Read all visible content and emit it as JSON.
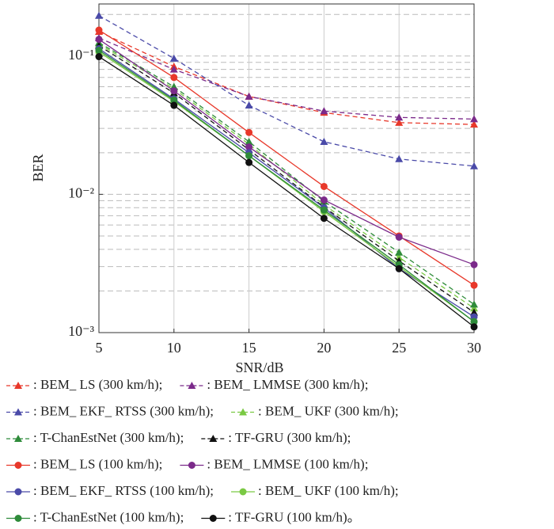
{
  "chart_data": {
    "type": "line",
    "x_label": "SNR/dB",
    "y_label": "BER",
    "x": [
      5,
      10,
      15,
      20,
      25,
      30
    ],
    "xlim": [
      5,
      30
    ],
    "xticks": [
      5,
      10,
      15,
      20,
      25,
      30
    ],
    "ylim": [
      0.001,
      0.238
    ],
    "log_y": true,
    "yticks": [
      {
        "value": 0.001,
        "label": "10⁻³"
      },
      {
        "value": 0.01,
        "label": "10⁻²"
      },
      {
        "value": 0.1,
        "label": "10⁻¹"
      }
    ],
    "yticks_minor": [
      0.002,
      0.003,
      0.004,
      0.005,
      0.006,
      0.007,
      0.008,
      0.009,
      0.02,
      0.03,
      0.04,
      0.05,
      0.06,
      0.07,
      0.08,
      0.09,
      0.2
    ],
    "grid": true,
    "legend": "bottom",
    "series": [
      {
        "name": ": BEM_ LS (300 km/h);",
        "color": "#e8382a",
        "dashed": true,
        "marker": "triangle",
        "values": [
          0.15,
          0.084,
          0.051,
          0.039,
          0.033,
          0.032
        ]
      },
      {
        "name": ": BEM_ LMMSE (300 km/h);",
        "color": "#7b2a8a",
        "dashed": true,
        "marker": "triangle",
        "values": [
          0.135,
          0.08,
          0.051,
          0.04,
          0.036,
          0.035
        ]
      },
      {
        "name": ": BEM_ EKF_ RTSS (300 km/h);",
        "color": "#4a4aa8",
        "dashed": true,
        "marker": "triangle",
        "values": [
          0.196,
          0.096,
          0.044,
          0.024,
          0.018,
          0.016
        ]
      },
      {
        "name": ": BEM_ UKF (300 km/h);",
        "color": "#7ac943",
        "dashed": true,
        "marker": "triangle",
        "values": [
          0.122,
          0.058,
          0.023,
          0.0084,
          0.0035,
          0.0015
        ]
      },
      {
        "name": ": T-ChanEstNet (300 km/h);",
        "color": "#2e8b3a",
        "dashed": true,
        "marker": "triangle",
        "values": [
          0.125,
          0.06,
          0.024,
          0.0089,
          0.0038,
          0.0016
        ]
      },
      {
        "name": ": TF-GRU (300 km/h);",
        "color": "#111111",
        "dashed": true,
        "marker": "triangle",
        "values": [
          0.119,
          0.054,
          0.021,
          0.0081,
          0.0033,
          0.0014
        ]
      },
      {
        "name": ": BEM_ LS (100 km/h);",
        "color": "#e8382a",
        "dashed": false,
        "marker": "circle",
        "values": [
          0.154,
          0.07,
          0.028,
          0.0114,
          0.005,
          0.0022
        ]
      },
      {
        "name": ": BEM_ LMMSE (100 km/h);",
        "color": "#7b2a8a",
        "dashed": false,
        "marker": "circle",
        "values": [
          0.132,
          0.056,
          0.022,
          0.0091,
          0.0049,
          0.0031
        ]
      },
      {
        "name": ": BEM_ EKF_ RTSS (100 km/h);",
        "color": "#4a4aa8",
        "dashed": false,
        "marker": "circle",
        "values": [
          0.113,
          0.049,
          0.02,
          0.008,
          0.0029,
          0.0013
        ]
      },
      {
        "name": ": BEM_ UKF (100 km/h);",
        "color": "#7ac943",
        "dashed": false,
        "marker": "circle",
        "values": [
          0.107,
          0.047,
          0.019,
          0.0075,
          0.003,
          0.0012
        ]
      },
      {
        "name": ": T-ChanEstNet (100 km/h);",
        "color": "#2e8b3a",
        "dashed": false,
        "marker": "circle",
        "values": [
          0.11,
          0.048,
          0.019,
          0.0077,
          0.0031,
          0.0012
        ]
      },
      {
        "name": ": TF-GRU (100 km/h)。",
        "color": "#111111",
        "dashed": false,
        "marker": "circle",
        "values": [
          0.099,
          0.044,
          0.017,
          0.0067,
          0.0029,
          0.0011
        ]
      }
    ]
  }
}
